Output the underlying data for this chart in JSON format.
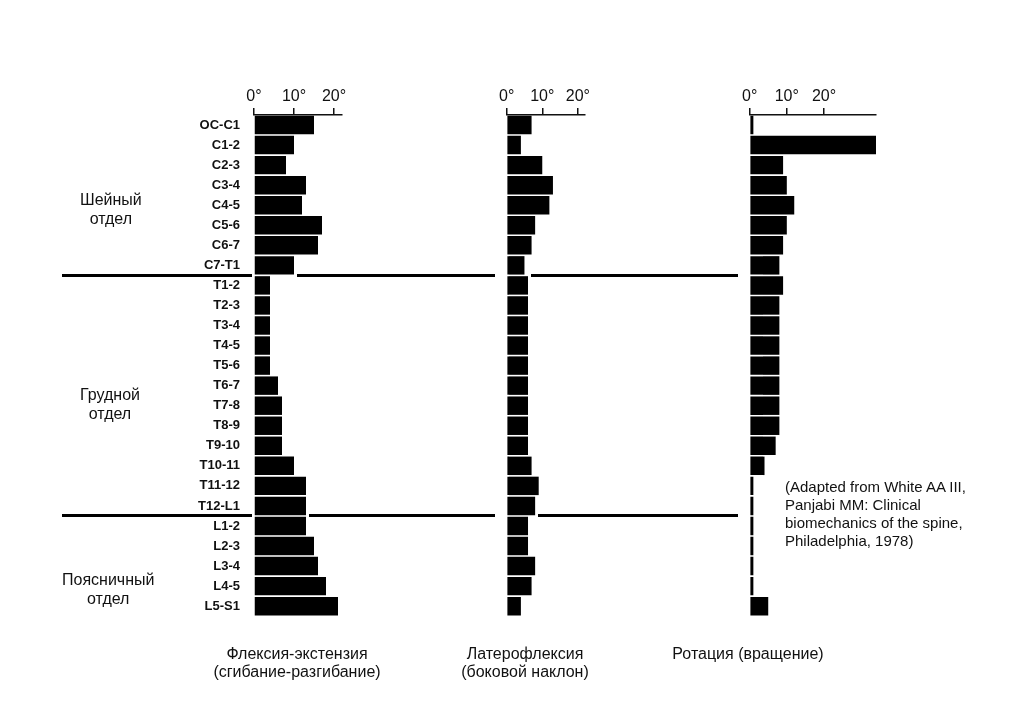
{
  "chart_data": [
    {
      "type": "bar",
      "orientation": "horizontal",
      "xlabel": "Флексия-экстензия\n(сгибание-разгибание)",
      "categories": [
        "OC-C1",
        "C1-2",
        "C2-3",
        "C3-4",
        "C4-5",
        "C5-6",
        "C6-7",
        "C7-T1",
        "T1-2",
        "T2-3",
        "T3-4",
        "T4-5",
        "T5-6",
        "T6-7",
        "T7-8",
        "T8-9",
        "T9-10",
        "T10-11",
        "T11-12",
        "T12-L1",
        "L1-2",
        "L2-3",
        "L3-4",
        "L4-5",
        "L5-S1"
      ],
      "values": [
        15,
        10,
        8,
        13,
        12,
        17,
        16,
        10,
        4,
        4,
        4,
        4,
        4,
        6,
        7,
        7,
        7,
        10,
        13,
        13,
        13,
        15,
        16,
        18,
        21
      ],
      "color": "#000000",
      "xlim": [
        0,
        22
      ],
      "xticks": [
        {
          "value": 0,
          "label": "0°"
        },
        {
          "value": 10,
          "label": "10°"
        },
        {
          "value": 20,
          "label": "20°"
        }
      ],
      "grid": false,
      "annotations": [
        "Шейный\nотдел",
        "Грудной\nотдел",
        "Поясничный\nотдел"
      ]
    },
    {
      "type": "bar",
      "orientation": "horizontal",
      "xlabel": "Латерофлексия\n(боковой наклон)",
      "categories": [
        null,
        null,
        null,
        null,
        null,
        null,
        null,
        null,
        null,
        null,
        null,
        null,
        null,
        null,
        null,
        null,
        null,
        null,
        null,
        null,
        null,
        null,
        null,
        null,
        null
      ],
      "values": [
        7,
        4,
        10,
        13,
        12,
        8,
        7,
        5,
        6,
        6,
        6,
        6,
        6,
        6,
        6,
        6,
        6,
        7,
        9,
        8,
        6,
        6,
        8,
        7,
        4
      ],
      "color": "#000000",
      "xlim": [
        0,
        22
      ],
      "xticks": [
        {
          "value": 0,
          "label": "0°"
        },
        {
          "value": 10,
          "label": "10°"
        },
        {
          "value": 20,
          "label": "20°"
        }
      ],
      "grid": false,
      "tick_labels": "x"
    },
    {
      "type": "bar",
      "orientation": "horizontal",
      "xlabel": "Ротация (вращение)",
      "categories": [
        null,
        null,
        null,
        null,
        null,
        null,
        null,
        null,
        null,
        null,
        null,
        null,
        null,
        null,
        null,
        null,
        null,
        null,
        null,
        null,
        null,
        null,
        null,
        null,
        null
      ],
      "values": [
        1,
        34,
        9,
        10,
        12,
        10,
        9,
        8,
        9,
        8,
        8,
        8,
        8,
        8,
        8,
        8,
        7,
        4,
        1,
        1,
        1,
        1,
        1,
        1,
        5
      ],
      "color": "#000000",
      "xlim": [
        0,
        34
      ],
      "xticks": [
        {
          "value": 0,
          "label": "0°"
        },
        {
          "value": 10,
          "label": "10°"
        },
        {
          "value": 20,
          "label": "20°"
        }
      ],
      "grid": false,
      "tick_labels": "x",
      "annotations": [
        "(Adapted from White AA III,\nPanjabi MM: Clinical\nbiomechanics of the spine,\nPhiladelphia, 1978)"
      ]
    }
  ]
}
